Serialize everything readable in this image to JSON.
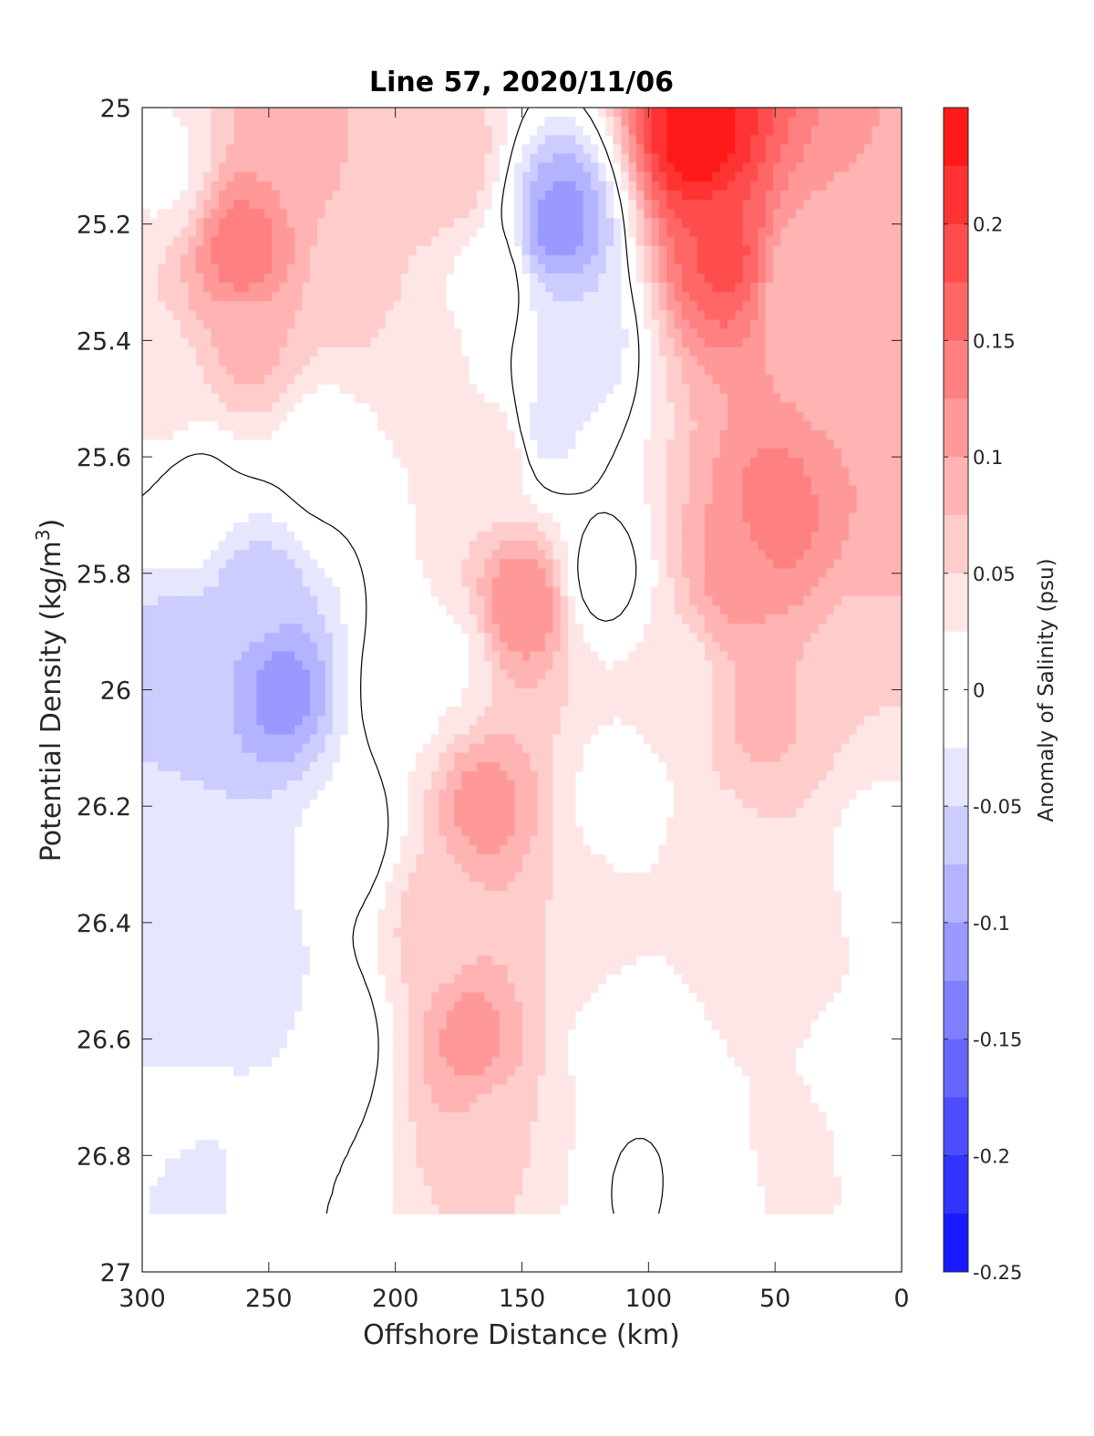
{
  "chart_data": {
    "type": "heatmap",
    "title": "Line 57, 2020/11/06",
    "xlabel": "Offshore Distance (km)",
    "ylabel_main": "Potential Density (kg/m",
    "ylabel_sup": "3",
    "ylabel_close": ")",
    "colorbar_label": "Anomaly of Salinity (psu)",
    "x_axis_reversed": true,
    "y_axis_reversed": true,
    "xlim": [
      0,
      300
    ],
    "ylim": [
      25,
      27
    ],
    "x_ticks": [
      300,
      250,
      200,
      150,
      100,
      50,
      0
    ],
    "x_tick_labels": [
      "300",
      "250",
      "200",
      "150",
      "100",
      "50",
      "0"
    ],
    "y_ticks": [
      25,
      25.2,
      25.4,
      25.6,
      25.8,
      26,
      26.2,
      26.4,
      26.6,
      26.8,
      27
    ],
    "y_tick_labels": [
      "25",
      "25.2",
      "25.4",
      "25.6",
      "25.8",
      "26",
      "26.2",
      "26.4",
      "26.6",
      "26.8",
      "27"
    ],
    "clim": [
      -0.25,
      0.25
    ],
    "colorbar_ticks": [
      0.2,
      0.15,
      0.1,
      0.05,
      0,
      -0.05,
      -0.1,
      -0.15,
      -0.2,
      -0.25
    ],
    "colorbar_tick_labels": [
      "0.2",
      "0.15",
      "0.1",
      "0.05",
      "0",
      "-0.05",
      "-0.1",
      "-0.15",
      "-0.2",
      "-0.25"
    ],
    "contour_levels": [
      -0.25,
      -0.225,
      -0.2,
      -0.175,
      -0.15,
      -0.125,
      -0.1,
      -0.075,
      -0.05,
      -0.025,
      0.025,
      0.05,
      0.075,
      0.1,
      0.125,
      0.15,
      0.175,
      0.2,
      0.225,
      0.25
    ],
    "colorbar_colors": [
      "#ff0000",
      "#ff1a1a",
      "#ff3333",
      "#ff4d4d",
      "#ff6666",
      "#ff8080",
      "#ff9999",
      "#ffb3b3",
      "#ffcccc",
      "#ffe6e6",
      "#ffffff",
      "#e6e6ff",
      "#ccccff",
      "#b3b3ff",
      "#9999ff",
      "#8080ff",
      "#6666ff",
      "#4d4dff",
      "#3333ff",
      "#1a1aff",
      "#0000ff"
    ],
    "zero_contour_color": "#000000",
    "coverage_x_range": [
      0,
      300
    ],
    "coverage_y_range": [
      25,
      26.9
    ],
    "features": [
      {
        "x": 260,
        "y": 25.25,
        "value": 0.14
      },
      {
        "x": 238,
        "y": 25.05,
        "value": 0.09
      },
      {
        "x": 258,
        "y": 25.4,
        "value": 0.08
      },
      {
        "x": 215,
        "y": 25.3,
        "value": 0.06
      },
      {
        "x": 205,
        "y": 25.1,
        "value": 0.07
      },
      {
        "x": 292,
        "y": 25.1,
        "value": 0.02
      },
      {
        "x": 293,
        "y": 25.5,
        "value": 0.03
      },
      {
        "x": 188,
        "y": 25.45,
        "value": 0.03
      },
      {
        "x": 180,
        "y": 25.1,
        "value": 0.07
      },
      {
        "x": 165,
        "y": 25.3,
        "value": 0.02
      },
      {
        "x": 135,
        "y": 25.2,
        "value": -0.11
      },
      {
        "x": 140,
        "y": 25.55,
        "value": -0.03
      },
      {
        "x": 128,
        "y": 25.4,
        "value": -0.05
      },
      {
        "x": 118,
        "y": 25.8,
        "value": -0.01
      },
      {
        "x": 70,
        "y": 25.25,
        "value": 0.18
      },
      {
        "x": 80,
        "y": 25.05,
        "value": 0.24
      },
      {
        "x": 50,
        "y": 25.7,
        "value": 0.14
      },
      {
        "x": 65,
        "y": 25.8,
        "value": 0.11
      },
      {
        "x": 40,
        "y": 25.3,
        "value": 0.08
      },
      {
        "x": 20,
        "y": 25.4,
        "value": 0.08
      },
      {
        "x": 5,
        "y": 25.65,
        "value": 0.1
      },
      {
        "x": 15,
        "y": 26.0,
        "value": 0.05
      },
      {
        "x": 55,
        "y": 26.05,
        "value": 0.08
      },
      {
        "x": 45,
        "y": 26.4,
        "value": 0.04
      },
      {
        "x": 40,
        "y": 26.8,
        "value": 0.03
      },
      {
        "x": 90,
        "y": 26.0,
        "value": 0.03
      },
      {
        "x": 75,
        "y": 26.3,
        "value": 0.04
      },
      {
        "x": 60,
        "y": 26.7,
        "value": 0.025
      },
      {
        "x": 150,
        "y": 25.85,
        "value": 0.12
      },
      {
        "x": 160,
        "y": 25.6,
        "value": 0.04
      },
      {
        "x": 165,
        "y": 26.2,
        "value": 0.11
      },
      {
        "x": 170,
        "y": 26.6,
        "value": 0.11
      },
      {
        "x": 162,
        "y": 26.75,
        "value": 0.07
      },
      {
        "x": 185,
        "y": 26.4,
        "value": 0.06
      },
      {
        "x": 125,
        "y": 26.4,
        "value": 0.05
      },
      {
        "x": 130,
        "y": 26.8,
        "value": 0.025
      },
      {
        "x": 180,
        "y": 25.95,
        "value": 0.02
      },
      {
        "x": 198,
        "y": 26.0,
        "value": 0.01
      },
      {
        "x": 110,
        "y": 26.2,
        "value": 0.005
      },
      {
        "x": 110,
        "y": 26.6,
        "value": 0.0
      },
      {
        "x": 105,
        "y": 26.85,
        "value": -0.005
      },
      {
        "x": 245,
        "y": 26.0,
        "value": -0.11
      },
      {
        "x": 255,
        "y": 25.85,
        "value": -0.07
      },
      {
        "x": 285,
        "y": 25.95,
        "value": -0.065
      },
      {
        "x": 275,
        "y": 26.3,
        "value": -0.05
      },
      {
        "x": 255,
        "y": 26.5,
        "value": -0.04
      },
      {
        "x": 290,
        "y": 26.6,
        "value": -0.04
      },
      {
        "x": 280,
        "y": 26.85,
        "value": -0.03
      },
      {
        "x": 220,
        "y": 26.25,
        "value": -0.02
      },
      {
        "x": 225,
        "y": 26.6,
        "value": -0.02
      },
      {
        "x": 280,
        "y": 25.68,
        "value": -0.01
      },
      {
        "x": 230,
        "y": 25.6,
        "value": 0.005
      },
      {
        "x": 290,
        "y": 26.7,
        "value": -0.005
      },
      {
        "x": 240,
        "y": 26.85,
        "value": 0.0
      },
      {
        "x": 10,
        "y": 26.7,
        "value": 0.0
      },
      {
        "x": 5,
        "y": 26.3,
        "value": 0.0
      },
      {
        "x": 75,
        "y": 26.88,
        "value": 0.02
      }
    ]
  }
}
